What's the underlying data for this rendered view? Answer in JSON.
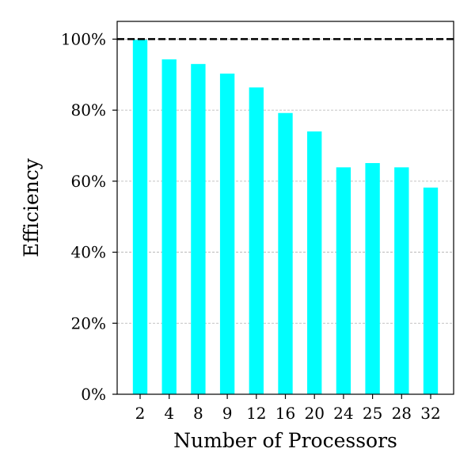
{
  "chart_data": {
    "type": "bar",
    "xlabel": "Number of Processors",
    "ylabel": "Efficiency",
    "categories": [
      "2",
      "4",
      "8",
      "9",
      "12",
      "16",
      "20",
      "24",
      "25",
      "28",
      "32"
    ],
    "values": [
      99.8,
      94.3,
      93.0,
      90.3,
      86.4,
      79.2,
      74.0,
      63.9,
      65.1,
      63.9,
      58.2
    ],
    "ylim": [
      0,
      105
    ],
    "yticks": [
      0,
      20,
      40,
      60,
      80,
      100
    ],
    "ytick_labels": [
      "0%",
      "20%",
      "40%",
      "60%",
      "80%",
      "100%"
    ],
    "reference_line": 100,
    "grid": "y-dashed",
    "bar_color": "#00ffff",
    "reference_line_color": "#000000"
  }
}
